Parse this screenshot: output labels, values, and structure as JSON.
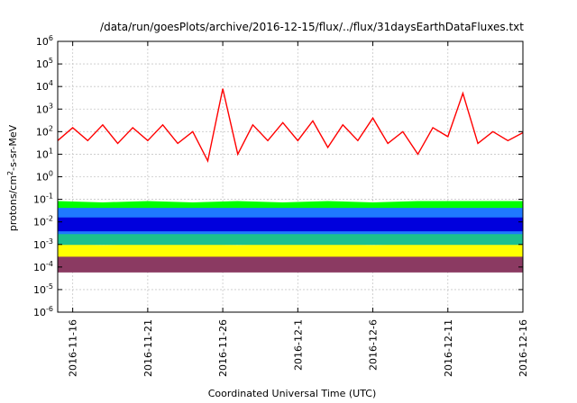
{
  "chart_data": {
    "type": "area",
    "title": "/data/run/goesPlots/archive/2016-12-15/flux/../flux/31daysEarthDataFluxes.txt",
    "xlabel": "Coordinated Universal Time (UTC)",
    "ylabel": {
      "prefix": "protons/cm",
      "sup": "2",
      "suffix": "-s-sr-MeV"
    },
    "x_range": [
      "2016-11-15",
      "2016-12-16"
    ],
    "x_ticks": [
      "2016-11-16",
      "2016-11-21",
      "2016-11-26",
      "2016-12-1",
      "2016-12-6",
      "2016-12-11",
      "2016-12-16"
    ],
    "y_scale": "log",
    "y_range": [
      1e-06,
      1000000.0
    ],
    "y_ticks": [
      {
        "base": "10",
        "exp": "-6"
      },
      {
        "base": "10",
        "exp": "-5"
      },
      {
        "base": "10",
        "exp": "-4"
      },
      {
        "base": "10",
        "exp": "-3"
      },
      {
        "base": "10",
        "exp": "-2"
      },
      {
        "base": "10",
        "exp": "-1"
      },
      {
        "base": "10",
        "exp": "0"
      },
      {
        "base": "10",
        "exp": "1"
      },
      {
        "base": "10",
        "exp": "2"
      },
      {
        "base": "10",
        "exp": "3"
      },
      {
        "base": "10",
        "exp": "4"
      },
      {
        "base": "10",
        "exp": "5"
      },
      {
        "base": "10",
        "exp": "6"
      }
    ],
    "grid": true,
    "legend": "none",
    "series": [
      {
        "color": "#8b3a62",
        "style": "band",
        "x": [
          "2016-11-15",
          "2016-11-18",
          "2016-11-21",
          "2016-11-24",
          "2016-11-27",
          "2016-11-30",
          "2016-12-3",
          "2016-12-6",
          "2016-12-9",
          "2016-12-12",
          "2016-12-16"
        ],
        "low": [
          6e-05,
          6e-05,
          6e-05,
          6e-05,
          6e-05,
          6e-05,
          6e-05,
          6e-05,
          6e-05,
          6e-05,
          6e-05
        ],
        "high": [
          0.0004,
          0.00035,
          0.0004,
          0.0004,
          0.00035,
          0.0004,
          0.0004,
          0.00035,
          0.0004,
          0.0004,
          0.0004
        ]
      },
      {
        "color": "#ffff00",
        "style": "band",
        "x": [
          "2016-11-15",
          "2016-11-18",
          "2016-11-21",
          "2016-11-24",
          "2016-11-27",
          "2016-11-30",
          "2016-12-3",
          "2016-12-6",
          "2016-12-9",
          "2016-12-12",
          "2016-12-16"
        ],
        "low": [
          0.0003,
          0.0003,
          0.0003,
          0.0003,
          0.0003,
          0.0003,
          0.0003,
          0.0003,
          0.0003,
          0.0003,
          0.0003
        ],
        "high": [
          0.001,
          0.0009,
          0.001,
          0.001,
          0.0009,
          0.001,
          0.001,
          0.0009,
          0.001,
          0.001,
          0.001
        ]
      },
      {
        "color": "#1cc08e",
        "style": "band",
        "x": [
          "2016-11-15",
          "2016-11-18",
          "2016-11-21",
          "2016-11-24",
          "2016-11-27",
          "2016-11-30",
          "2016-12-3",
          "2016-12-6",
          "2016-12-9",
          "2016-12-12",
          "2016-12-16"
        ],
        "low": [
          0.001,
          0.001,
          0.001,
          0.001,
          0.001,
          0.001,
          0.001,
          0.001,
          0.001,
          0.001,
          0.001
        ],
        "high": [
          0.004,
          0.004,
          0.004,
          0.004,
          0.004,
          0.004,
          0.004,
          0.004,
          0.004,
          0.004,
          0.004
        ]
      },
      {
        "color": "#00ff00",
        "style": "band",
        "x": [
          "2016-11-15",
          "2016-11-18",
          "2016-11-21",
          "2016-11-24",
          "2016-11-27",
          "2016-11-30",
          "2016-12-3",
          "2016-12-6",
          "2016-12-9",
          "2016-12-12",
          "2016-12-16"
        ],
        "low": [
          0.004,
          0.004,
          0.004,
          0.004,
          0.004,
          0.004,
          0.004,
          0.004,
          0.004,
          0.004,
          0.004
        ],
        "high": [
          0.08,
          0.07,
          0.08,
          0.07,
          0.08,
          0.07,
          0.08,
          0.07,
          0.08,
          0.08,
          0.08
        ]
      },
      {
        "color": "#1f78ff",
        "style": "band",
        "x": [
          "2016-11-15",
          "2016-11-18",
          "2016-11-21",
          "2016-11-24",
          "2016-11-27",
          "2016-11-30",
          "2016-12-3",
          "2016-12-6",
          "2016-12-9",
          "2016-12-12",
          "2016-12-16"
        ],
        "low": [
          0.003,
          0.003,
          0.003,
          0.003,
          0.003,
          0.003,
          0.003,
          0.003,
          0.003,
          0.003,
          0.003
        ],
        "high": [
          0.04,
          0.04,
          0.04,
          0.04,
          0.04,
          0.04,
          0.04,
          0.04,
          0.04,
          0.04,
          0.04
        ]
      },
      {
        "color": "#0000dd",
        "style": "band",
        "x": [
          "2016-11-15",
          "2016-11-18",
          "2016-11-21",
          "2016-11-24",
          "2016-11-27",
          "2016-11-30",
          "2016-12-3",
          "2016-12-6",
          "2016-12-9",
          "2016-12-12",
          "2016-12-16"
        ],
        "low": [
          0.004,
          0.004,
          0.004,
          0.004,
          0.004,
          0.004,
          0.004,
          0.004,
          0.004,
          0.004,
          0.004
        ],
        "high": [
          0.015,
          0.015,
          0.015,
          0.015,
          0.015,
          0.015,
          0.015,
          0.015,
          0.015,
          0.015,
          0.015
        ]
      },
      {
        "color": "#ff0000",
        "style": "line",
        "x": [
          "2016-11-15",
          "2016-11-16",
          "2016-11-17",
          "2016-11-18",
          "2016-11-19",
          "2016-11-20",
          "2016-11-21",
          "2016-11-22",
          "2016-11-23",
          "2016-11-24",
          "2016-11-25",
          "2016-11-26",
          "2016-11-27",
          "2016-11-28",
          "2016-11-29",
          "2016-11-30",
          "2016-12-1",
          "2016-12-2",
          "2016-12-3",
          "2016-12-4",
          "2016-12-5",
          "2016-12-6",
          "2016-12-7",
          "2016-12-8",
          "2016-12-9",
          "2016-12-10",
          "2016-12-11",
          "2016-12-12",
          "2016-12-13",
          "2016-12-14",
          "2016-12-15",
          "2016-12-16"
        ],
        "y": [
          40,
          150,
          40,
          200,
          30,
          150,
          40,
          200,
          30,
          100,
          5,
          8000,
          10,
          200,
          40,
          250,
          40,
          300,
          20,
          200,
          40,
          400,
          30,
          100,
          10,
          150,
          60,
          5000,
          30,
          100,
          40,
          90
        ]
      }
    ]
  }
}
